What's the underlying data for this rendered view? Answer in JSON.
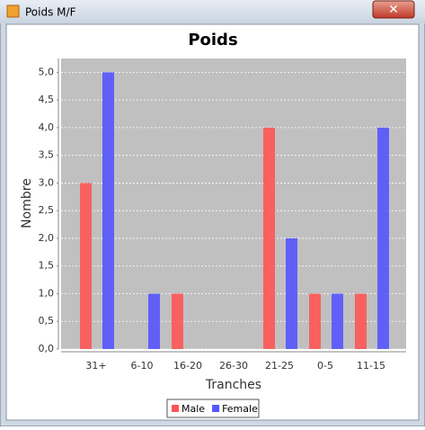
{
  "window": {
    "title": "Poids M/F"
  },
  "chart_data": {
    "type": "bar",
    "title": "Poids",
    "x_label": "Tranches",
    "y_label": "Nombre",
    "categories": [
      "31+",
      "6-10",
      "16-20",
      "26-30",
      "21-25",
      "0-5",
      "11-15"
    ],
    "series": [
      {
        "name": "Male",
        "color": "#ff5555",
        "values": [
          3,
          0,
          1,
          0,
          4,
          1,
          1
        ]
      },
      {
        "name": "Female",
        "color": "#5555ff",
        "values": [
          5,
          1,
          0,
          0,
          2,
          1,
          4
        ]
      }
    ],
    "ylim": [
      0,
      5.25
    ],
    "yticks": [
      {
        "value": 0,
        "label": "0,0"
      },
      {
        "value": 0.5,
        "label": "0,5"
      },
      {
        "value": 1,
        "label": "1,0"
      },
      {
        "value": 1.5,
        "label": "1,5"
      },
      {
        "value": 2,
        "label": "2,0"
      },
      {
        "value": 2.5,
        "label": "2,5"
      },
      {
        "value": 3,
        "label": "3,0"
      },
      {
        "value": 3.5,
        "label": "3,5"
      },
      {
        "value": 4,
        "label": "4,0"
      },
      {
        "value": 4.5,
        "label": "4,5"
      },
      {
        "value": 5,
        "label": "5,0"
      }
    ],
    "grid": true
  }
}
